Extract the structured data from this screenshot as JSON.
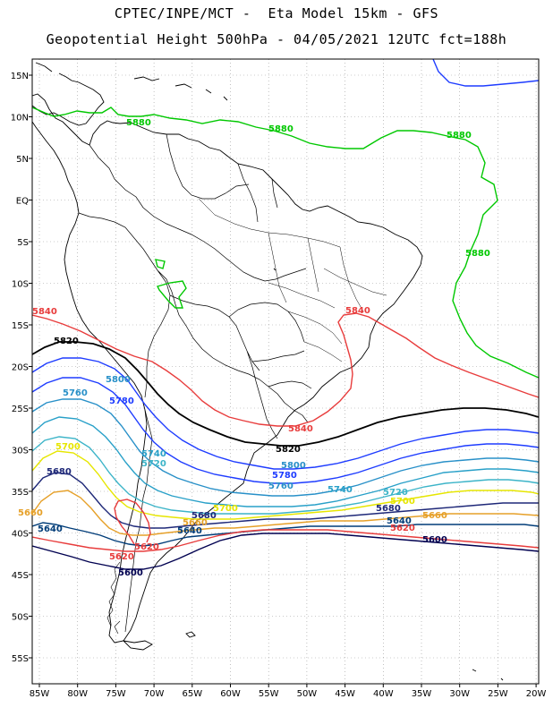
{
  "header": {
    "line1": "CPTEC/INPE/MCT -  Eta Model 15km - GFS",
    "line2": "Geopotential Height 500hPa - 04/05/2021 12UTC fct=188h"
  },
  "axes": {
    "lat_labels": [
      "15N",
      "10N",
      "5N",
      "EQ",
      "5S",
      "10S",
      "15S",
      "20S",
      "25S",
      "30S",
      "35S",
      "40S",
      "45S",
      "50S",
      "55S"
    ],
    "lon_labels": [
      "85W",
      "80W",
      "75W",
      "70W",
      "65W",
      "60W",
      "55W",
      "50W",
      "45W",
      "40W",
      "35W",
      "30W",
      "25W",
      "20W"
    ]
  },
  "colors": {
    "c5880": "#00c800",
    "c5840": "#e83c3c",
    "c5820": "#000000",
    "c5800": "#1e3cff",
    "c5780": "#1e3cff",
    "c5760": "#2890c8",
    "c5740": "#28a0c8",
    "c5720": "#3cb4c8",
    "c5700": "#e6e600",
    "c5680": "#1e2878",
    "c5660": "#e6a028",
    "c5640": "#003c78",
    "c5620": "#e83c3c",
    "c5600": "#000050",
    "coast": "#000000",
    "grid": "#999999"
  },
  "contour_labels": {
    "l5880a": "5880",
    "l5880b": "5880",
    "l5880c": "5880",
    "l5880d": "5880",
    "l5840a": "5840",
    "l5840b": "5840",
    "l5840c": "5840",
    "l5820a": "5820",
    "l5820b": "5820",
    "l5800a": "5800",
    "l5800b": "5800",
    "l5780a": "5780",
    "l5780b": "5780",
    "l5760a": "5760",
    "l5760b": "5760",
    "l5740a": "5740",
    "l5740b": "5740",
    "l5720a": "5720",
    "l5720b": "5720",
    "l5700a": "5700",
    "l5700b": "5700",
    "l5700c": "5700",
    "l5680a": "5680",
    "l5680b": "5680",
    "l5680c": "5680",
    "l5660a": "5660",
    "l5660b": "5660",
    "l5660c": "5660",
    "l5640a": "5640",
    "l5640b": "5640",
    "l5640c": "5640",
    "l5620a": "5620",
    "l5620b": "5620",
    "l5620c": "5620",
    "l5600a": "5600",
    "l5600b": "5600"
  }
}
